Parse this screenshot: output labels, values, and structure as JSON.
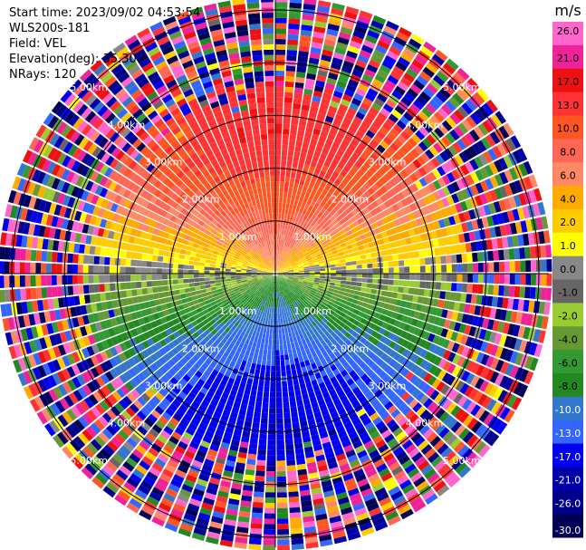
{
  "info": {
    "start_time": "Start time: 2023/09/02 04:53:54",
    "instrument": "WLS200s-181",
    "field": "Field: VEL",
    "elevation": "Elevation(deg): 35.30",
    "nrays": "NRays: 120"
  },
  "chart_data": {
    "type": "heatmap",
    "projection": "polar (PPI)",
    "field": "VEL",
    "nrays": 120,
    "range_rings_km": [
      1.0,
      2.0,
      3.0,
      4.0,
      5.0
    ],
    "range_ring_labels": [
      "1.00km",
      "2.00km",
      "3.00km",
      "4.00km",
      "5.00km"
    ],
    "max_range_km": 5.2,
    "colorbar": {
      "unit": "m/s",
      "ticks": [
        "26.0",
        "21.0",
        "17.0",
        "13.0",
        "10.0",
        "8.0",
        "6.0",
        "4.0",
        "2.0",
        "1.0",
        "0.0",
        "-1.0",
        "-2.0",
        "-4.0",
        "-6.0",
        "-8.0",
        "-10.0",
        "-13.0",
        "-17.0",
        "-21.0",
        "-26.0",
        "-30.0"
      ],
      "bins": [
        {
          "from": 26.0,
          "to": 30.0,
          "color": "#ff66cc"
        },
        {
          "from": 21.0,
          "to": 26.0,
          "color": "#ee2299"
        },
        {
          "from": 17.0,
          "to": 21.0,
          "color": "#ee1111"
        },
        {
          "from": 13.0,
          "to": 17.0,
          "color": "#ff3333"
        },
        {
          "from": 10.0,
          "to": 13.0,
          "color": "#ff5522"
        },
        {
          "from": 8.0,
          "to": 10.0,
          "color": "#ff6655"
        },
        {
          "from": 6.0,
          "to": 8.0,
          "color": "#ff8866"
        },
        {
          "from": 4.0,
          "to": 6.0,
          "color": "#ffaa00"
        },
        {
          "from": 2.0,
          "to": 4.0,
          "color": "#ffcc00"
        },
        {
          "from": 1.0,
          "to": 2.0,
          "color": "#ffff00"
        },
        {
          "from": 0.0,
          "to": 1.0,
          "color": "#888888"
        },
        {
          "from": -1.0,
          "to": 0.0,
          "color": "#666666"
        },
        {
          "from": -2.0,
          "to": -1.0,
          "color": "#99cc33"
        },
        {
          "from": -4.0,
          "to": -2.0,
          "color": "#669933"
        },
        {
          "from": -6.0,
          "to": -4.0,
          "color": "#339933"
        },
        {
          "from": -8.0,
          "to": -6.0,
          "color": "#228822"
        },
        {
          "from": -10.0,
          "to": -8.0,
          "color": "#3377cc"
        },
        {
          "from": -13.0,
          "to": -10.0,
          "color": "#3366ff"
        },
        {
          "from": -17.0,
          "to": -13.0,
          "color": "#0000ee"
        },
        {
          "from": -21.0,
          "to": -17.0,
          "color": "#0000aa"
        },
        {
          "from": -26.0,
          "to": -21.0,
          "color": "#000088"
        },
        {
          "from": -30.0,
          "to": -26.0,
          "color": "#000055"
        }
      ]
    },
    "pattern": {
      "description_values": "inner rings: positive velocity toward north (up to ~17 m/s), negative toward south (down to ~-17 m/s); outer ranges (>3.5 km) noisy",
      "peak_positive_ms": 15.0,
      "peak_negative_ms": -15.0,
      "noise_start_km": 3.6
    }
  }
}
